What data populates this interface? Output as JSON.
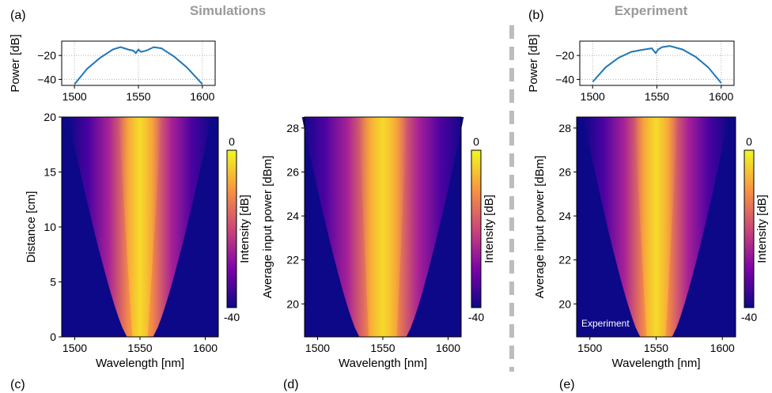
{
  "headings": {
    "simulations": "Simulations",
    "experiment": "Experiment"
  },
  "panel_labels": {
    "a": "(a)",
    "b": "(b)",
    "c": "(c)",
    "d": "(d)",
    "e": "(e)"
  },
  "colors": {
    "line": "#1f77b4",
    "divider": "#bdbdbd",
    "grid": "#b0b0b0"
  },
  "chart_data": [
    {
      "id": "a",
      "type": "line",
      "xlabel": "",
      "ylabel": "Power [dB]",
      "xlim": [
        1490,
        1610
      ],
      "ylim": [
        -45,
        -8
      ],
      "xticks": [
        "1500",
        "1550",
        "1600"
      ],
      "yticks": [
        "−20",
        "−40"
      ],
      "grid": true,
      "series": [
        {
          "x": [
            1500,
            1510,
            1520,
            1530,
            1536,
            1542,
            1546,
            1548,
            1550,
            1552,
            1556,
            1562,
            1568,
            1578,
            1588,
            1600
          ],
          "y": [
            -44,
            -31,
            -22,
            -15,
            -13,
            -15,
            -16,
            -18,
            -15,
            -17,
            -16,
            -13,
            -14,
            -21,
            -30,
            -44
          ]
        }
      ]
    },
    {
      "id": "b",
      "type": "line",
      "xlabel": "",
      "ylabel": "Power [dB]",
      "xlim": [
        1490,
        1610
      ],
      "ylim": [
        -45,
        -8
      ],
      "xticks": [
        "1500",
        "1550",
        "1600"
      ],
      "yticks": [
        "−20",
        "−40"
      ],
      "grid": true,
      "series": [
        {
          "x": [
            1500,
            1510,
            1520,
            1530,
            1540,
            1546,
            1549,
            1551,
            1554,
            1560,
            1570,
            1580,
            1590,
            1600
          ],
          "y": [
            -42,
            -30,
            -22,
            -17,
            -15,
            -14,
            -18,
            -15,
            -13,
            -12,
            -15,
            -21,
            -30,
            -43
          ]
        }
      ]
    },
    {
      "id": "c",
      "type": "heatmap",
      "xlabel": "Wavelength [nm]",
      "ylabel": "Distance [cm]",
      "xlim": [
        1490,
        1610
      ],
      "ylim": [
        0,
        20
      ],
      "xticks": [
        "1500",
        "1550",
        "1600"
      ],
      "yticks": [
        "0",
        "5",
        "10",
        "15",
        "20"
      ],
      "colorbar": {
        "label": "Intensity [dB]",
        "max": "0",
        "min": "-40"
      },
      "center_nm": 1550,
      "halfwidth_start_nm": 10,
      "halfwidth_end_nm": 55,
      "inset_text": ""
    },
    {
      "id": "d",
      "type": "heatmap",
      "xlabel": "Wavelength [nm]",
      "ylabel": "Average input power [dBm]",
      "xlim": [
        1490,
        1610
      ],
      "ylim": [
        18.5,
        28.5
      ],
      "xticks": [
        "1500",
        "1550",
        "1600"
      ],
      "yticks": [
        "20",
        "22",
        "24",
        "26",
        "28"
      ],
      "colorbar": {
        "label": "Intensity [dB]",
        "max": "0",
        "min": "-40"
      },
      "center_nm": 1550,
      "halfwidth_start_nm": 18,
      "halfwidth_end_nm": 62,
      "inset_text": ""
    },
    {
      "id": "e",
      "type": "heatmap",
      "xlabel": "Wavelength [nm]",
      "ylabel": "Average input power [dBm]",
      "xlim": [
        1490,
        1610
      ],
      "ylim": [
        18.5,
        28.5
      ],
      "xticks": [
        "1500",
        "1550",
        "1600"
      ],
      "yticks": [
        "20",
        "22",
        "24",
        "26",
        "28"
      ],
      "colorbar": {
        "label": "Intensity [dB]",
        "max": "0",
        "min": "-40"
      },
      "center_nm": 1550,
      "halfwidth_start_nm": 12,
      "halfwidth_end_nm": 55,
      "inset_text": "Experiment"
    }
  ]
}
